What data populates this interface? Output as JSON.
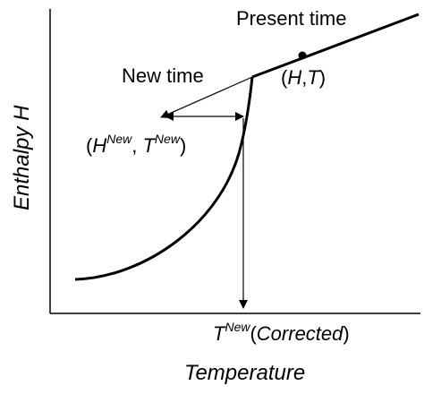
{
  "diagram": {
    "y_axis_label": "Enthalpy H",
    "x_axis_label": "Temperature",
    "present_time_label": "Present time",
    "new_time_label": "New time",
    "current_point_label": {
      "open": "(",
      "h": "H",
      "comma": ",",
      "t": "T",
      "close": ")"
    },
    "new_point_label": {
      "open": "(",
      "h": "H",
      "h_superscript": "New",
      "comma": ", ",
      "t": "T",
      "t_superscript": "New",
      "close": ")"
    },
    "corrected_label": {
      "t": "T",
      "t_superscript": "New",
      "open": "(",
      "word": "Corrected",
      "close": ")"
    },
    "colors": {
      "line": "#000000",
      "background": "#ffffff"
    }
  }
}
